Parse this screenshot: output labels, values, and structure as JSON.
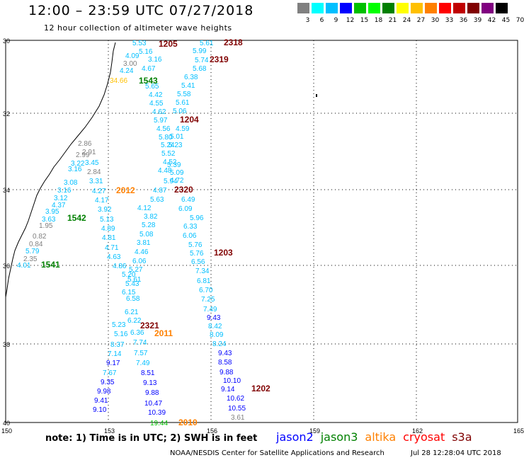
{
  "header": {
    "title": "12:00 – 23:59 UTC 07/27/2018",
    "subtitle": "12 hour collection of altimeter wave heights"
  },
  "color_scale": {
    "colors": [
      "#808080",
      "#00ffff",
      "#00bfff",
      "#0000ff",
      "#00c000",
      "#00ff00",
      "#008000",
      "#ffff00",
      "#ffc000",
      "#ff8000",
      "#ff0000",
      "#c00000",
      "#800000",
      "#800080",
      "#000000"
    ],
    "labels": [
      "3",
      "6",
      "9",
      "12",
      "15",
      "18",
      "21",
      "24",
      "27",
      "30",
      "33",
      "36",
      "39",
      "42",
      "45",
      "70",
      "(ft)"
    ]
  },
  "map": {
    "lat_labels": [
      "30",
      "32",
      "34",
      "36",
      "38",
      "40"
    ],
    "lon_labels": [
      "150",
      "153",
      "156",
      "159",
      "162",
      "165"
    ],
    "track_labels": [
      {
        "text": "1205",
        "color": "#800000"
      },
      {
        "text": "2318",
        "color": "#800000"
      },
      {
        "text": "2319",
        "color": "#800000"
      },
      {
        "text": "1543",
        "color": "#008000"
      },
      {
        "text": "1204",
        "color": "#800000"
      },
      {
        "text": "2012",
        "color": "#ff8000"
      },
      {
        "text": "2320",
        "color": "#800000"
      },
      {
        "text": "1542",
        "color": "#008000"
      },
      {
        "text": "1203",
        "color": "#800000"
      },
      {
        "text": "1541",
        "color": "#008000"
      },
      {
        "text": "2321",
        "color": "#800000"
      },
      {
        "text": "2011",
        "color": "#ff8000"
      },
      {
        "text": "1202",
        "color": "#800000"
      },
      {
        "text": "2010",
        "color": "#ff8000"
      }
    ],
    "observations": [
      {
        "v": "5.53",
        "c": "#00bfff"
      },
      {
        "v": "5.16",
        "c": "#00bfff"
      },
      {
        "v": "4.09",
        "c": "#00bfff"
      },
      {
        "v": "3.00",
        "c": "#808080"
      },
      {
        "v": "4.24",
        "c": "#00bfff"
      },
      {
        "v": "4.67",
        "c": "#00bfff"
      },
      {
        "v": "3.16",
        "c": "#00bfff"
      },
      {
        "v": "34.66",
        "c": "#ffc000"
      },
      {
        "v": "5.65",
        "c": "#00bfff"
      },
      {
        "v": "4.42",
        "c": "#00bfff"
      },
      {
        "v": "4.55",
        "c": "#00bfff"
      },
      {
        "v": "4.62",
        "c": "#00bfff"
      },
      {
        "v": "5.97",
        "c": "#00bfff"
      },
      {
        "v": "4.56",
        "c": "#00bfff"
      },
      {
        "v": "5.80",
        "c": "#00bfff"
      },
      {
        "v": "5.24",
        "c": "#00bfff"
      },
      {
        "v": "5.52",
        "c": "#00bfff"
      },
      {
        "v": "4.52",
        "c": "#00bfff"
      },
      {
        "v": "4.48",
        "c": "#00bfff"
      },
      {
        "v": "5.94",
        "c": "#00bfff"
      },
      {
        "v": "4.87",
        "c": "#00bfff"
      },
      {
        "v": "5.63",
        "c": "#00bfff"
      },
      {
        "v": "4.12",
        "c": "#00bfff"
      },
      {
        "v": "3.82",
        "c": "#00bfff"
      },
      {
        "v": "5.28",
        "c": "#00bfff"
      },
      {
        "v": "5.08",
        "c": "#00bfff"
      },
      {
        "v": "3.81",
        "c": "#00bfff"
      },
      {
        "v": "4.46",
        "c": "#00bfff"
      },
      {
        "v": "6.06",
        "c": "#00bfff"
      },
      {
        "v": "5.27",
        "c": "#00bfff"
      },
      {
        "v": "5.61",
        "c": "#00bfff"
      },
      {
        "v": "5.20",
        "c": "#00bfff"
      },
      {
        "v": "5.43",
        "c": "#00bfff"
      },
      {
        "v": "6.15",
        "c": "#00bfff"
      },
      {
        "v": "6.58",
        "c": "#00bfff"
      },
      {
        "v": "6.21",
        "c": "#00bfff"
      },
      {
        "v": "6.22",
        "c": "#00bfff"
      },
      {
        "v": "6.36",
        "c": "#00bfff"
      },
      {
        "v": "7.74",
        "c": "#00bfff"
      },
      {
        "v": "7.57",
        "c": "#00bfff"
      },
      {
        "v": "7.49",
        "c": "#00bfff"
      },
      {
        "v": "8.51",
        "c": "#0000ff"
      },
      {
        "v": "9.13",
        "c": "#0000ff"
      },
      {
        "v": "9.88",
        "c": "#0000ff"
      },
      {
        "v": "10.47",
        "c": "#0000ff"
      },
      {
        "v": "10.39",
        "c": "#0000ff"
      },
      {
        "v": "19.44",
        "c": "#00c000"
      },
      {
        "v": "5.61",
        "c": "#00bfff"
      },
      {
        "v": "5.99",
        "c": "#00bfff"
      },
      {
        "v": "5.74",
        "c": "#00bfff"
      },
      {
        "v": "5.68",
        "c": "#00bfff"
      },
      {
        "v": "6.38",
        "c": "#00bfff"
      },
      {
        "v": "5.41",
        "c": "#00bfff"
      },
      {
        "v": "5.58",
        "c": "#00bfff"
      },
      {
        "v": "5.61",
        "c": "#00bfff"
      },
      {
        "v": "5.06",
        "c": "#00bfff"
      },
      {
        "v": "4.59",
        "c": "#00bfff"
      },
      {
        "v": "5.01",
        "c": "#00bfff"
      },
      {
        "v": "5.23",
        "c": "#00bfff"
      },
      {
        "v": "5.39",
        "c": "#00bfff"
      },
      {
        "v": "5.09",
        "c": "#00bfff"
      },
      {
        "v": "4.72",
        "c": "#00bfff"
      },
      {
        "v": "6.49",
        "c": "#00bfff"
      },
      {
        "v": "6.09",
        "c": "#00bfff"
      },
      {
        "v": "5.96",
        "c": "#00bfff"
      },
      {
        "v": "6.33",
        "c": "#00bfff"
      },
      {
        "v": "6.06",
        "c": "#00bfff"
      },
      {
        "v": "5.76",
        "c": "#00bfff"
      },
      {
        "v": "5.76",
        "c": "#00bfff"
      },
      {
        "v": "6.56",
        "c": "#00bfff"
      },
      {
        "v": "7.34",
        "c": "#00bfff"
      },
      {
        "v": "6.81",
        "c": "#00bfff"
      },
      {
        "v": "6.70",
        "c": "#00bfff"
      },
      {
        "v": "7.25",
        "c": "#00bfff"
      },
      {
        "v": "7.49",
        "c": "#00bfff"
      },
      {
        "v": "9.43",
        "c": "#0000ff"
      },
      {
        "v": "8.42",
        "c": "#00bfff"
      },
      {
        "v": "8.09",
        "c": "#00bfff"
      },
      {
        "v": "8.24",
        "c": "#00bfff"
      },
      {
        "v": "9.43",
        "c": "#0000ff"
      },
      {
        "v": "8.58",
        "c": "#0000ff"
      },
      {
        "v": "9.88",
        "c": "#0000ff"
      },
      {
        "v": "10.10",
        "c": "#0000ff"
      },
      {
        "v": "9.14",
        "c": "#0000ff"
      },
      {
        "v": "10.62",
        "c": "#0000ff"
      },
      {
        "v": "10.55",
        "c": "#0000ff"
      },
      {
        "v": "3.61",
        "c": "#808080"
      },
      {
        "v": "2.86",
        "c": "#808080"
      },
      {
        "v": "2.91",
        "c": "#808080"
      },
      {
        "v": "2.99",
        "c": "#808080"
      },
      {
        "v": "2.84",
        "c": "#808080"
      },
      {
        "v": "3.08",
        "c": "#00bfff"
      },
      {
        "v": "3.22",
        "c": "#00bfff"
      },
      {
        "v": "3.16",
        "c": "#00bfff"
      },
      {
        "v": "3.45",
        "c": "#00bfff"
      },
      {
        "v": "3.31",
        "c": "#00bfff"
      },
      {
        "v": "3.16",
        "c": "#00bfff"
      },
      {
        "v": "3.12",
        "c": "#00bfff"
      },
      {
        "v": "4.37",
        "c": "#00bfff"
      },
      {
        "v": "3.95",
        "c": "#00bfff"
      },
      {
        "v": "3.63",
        "c": "#00bfff"
      },
      {
        "v": "1.95",
        "c": "#808080"
      },
      {
        "v": "0.82",
        "c": "#808080"
      },
      {
        "v": "0.84",
        "c": "#808080"
      },
      {
        "v": "5.79",
        "c": "#00bfff"
      },
      {
        "v": "2.35",
        "c": "#808080"
      },
      {
        "v": "4.01",
        "c": "#00bfff"
      },
      {
        "v": "4.27",
        "c": "#00bfff"
      },
      {
        "v": "4.17",
        "c": "#00bfff"
      },
      {
        "v": "3.92",
        "c": "#00bfff"
      },
      {
        "v": "5.13",
        "c": "#00bfff"
      },
      {
        "v": "4.89",
        "c": "#00bfff"
      },
      {
        "v": "4.81",
        "c": "#00bfff"
      },
      {
        "v": "4.71",
        "c": "#00bfff"
      },
      {
        "v": "4.63",
        "c": "#00bfff"
      },
      {
        "v": "4.86",
        "c": "#00bfff"
      },
      {
        "v": "5.23",
        "c": "#00bfff"
      },
      {
        "v": "5.16",
        "c": "#00bfff"
      },
      {
        "v": "8.37",
        "c": "#00bfff"
      },
      {
        "v": "7.14",
        "c": "#00bfff"
      },
      {
        "v": "9.17",
        "c": "#0000ff"
      },
      {
        "v": "7.67",
        "c": "#00bfff"
      },
      {
        "v": "9.35",
        "c": "#0000ff"
      },
      {
        "v": "9.98",
        "c": "#0000ff"
      },
      {
        "v": "9.41",
        "c": "#0000ff"
      },
      {
        "v": "9.10",
        "c": "#0000ff"
      }
    ]
  },
  "footer": {
    "note": "note: 1) Time is in UTC; 2) SWH is in feet",
    "legend": [
      {
        "text": "jason2",
        "color": "#0000ff"
      },
      {
        "text": "jason3",
        "color": "#008000"
      },
      {
        "text": "altika",
        "color": "#ff8000"
      },
      {
        "text": "cryosat",
        "color": "#ff0000"
      },
      {
        "text": "s3a",
        "color": "#800000"
      }
    ],
    "credit": "NOAA/NESDIS Center for Satellite Applications and Research",
    "timestamp": "Jul 28 12:28:04 UTC 2018"
  }
}
